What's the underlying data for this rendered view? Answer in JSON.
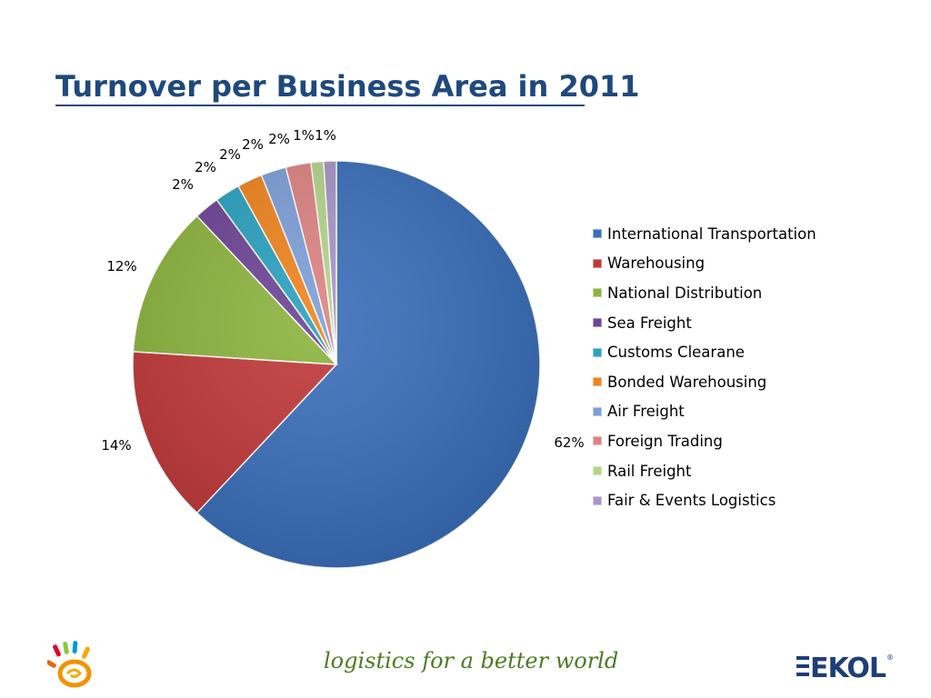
{
  "title": "Turnover per Business Area in 2011",
  "footer": {
    "slogan": "logistics for a better world",
    "brand": "EKOL",
    "registered_mark": "®"
  },
  "chart_data": {
    "type": "pie",
    "title": "Turnover per Business Area in 2011",
    "legend_position": "right",
    "slices": [
      {
        "label": "International Transportation",
        "value": 62,
        "display": "62%",
        "color": "#3a6fba"
      },
      {
        "label": "Warehousing",
        "value": 14,
        "display": "14%",
        "color": "#c0393a"
      },
      {
        "label": "National Distribution",
        "value": 12,
        "display": "12%",
        "color": "#8cb43e"
      },
      {
        "label": "Sea Freight",
        "value": 2,
        "display": "2%",
        "color": "#6d4596"
      },
      {
        "label": "Customs Clearane",
        "value": 2,
        "display": "2%",
        "color": "#2ba2bf"
      },
      {
        "label": "Bonded Warehousing",
        "value": 2,
        "display": "2%",
        "color": "#f0841f"
      },
      {
        "label": "Air Freight",
        "value": 2,
        "display": "2%",
        "color": "#7e9fd8"
      },
      {
        "label": "Foreign Trading",
        "value": 2,
        "display": "2%",
        "color": "#dc8483"
      },
      {
        "label": "Rail Freight",
        "value": 1,
        "display": "1%",
        "color": "#b5d48a"
      },
      {
        "label": "Fair & Events Logistics",
        "value": 1,
        "display": "1%",
        "color": "#a995c6"
      }
    ]
  }
}
